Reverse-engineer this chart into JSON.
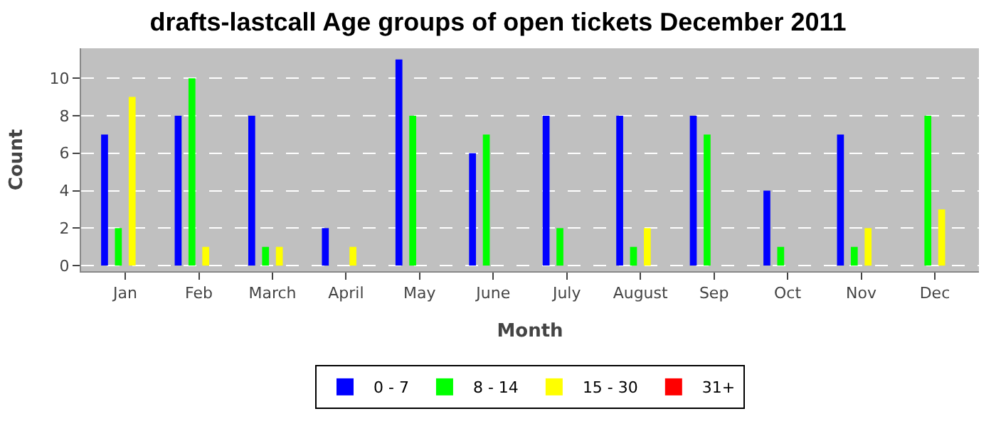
{
  "chart_data": {
    "type": "bar",
    "title": "drafts-lastcall Age groups of open tickets December 2011",
    "xlabel": "Month",
    "ylabel": "Count",
    "categories": [
      "Jan",
      "Feb",
      "March",
      "April",
      "May",
      "June",
      "July",
      "August",
      "Sep",
      "Oct",
      "Nov",
      "Dec"
    ],
    "series": [
      {
        "name": "0 - 7",
        "color": "#0000ff",
        "values": [
          7,
          8,
          8,
          2,
          11,
          6,
          8,
          8,
          8,
          4,
          7,
          0
        ]
      },
      {
        "name": "8 - 14",
        "color": "#00ff00",
        "values": [
          2,
          10,
          1,
          0,
          8,
          7,
          2,
          1,
          7,
          1,
          1,
          8
        ]
      },
      {
        "name": "15 - 30",
        "color": "#ffff00",
        "values": [
          9,
          1,
          1,
          1,
          0,
          0,
          0,
          2,
          0,
          0,
          2,
          3
        ]
      },
      {
        "name": "31+",
        "color": "#ff0000",
        "values": [
          0,
          0,
          0,
          0,
          0,
          0,
          0,
          0,
          0,
          0,
          0,
          0
        ]
      }
    ],
    "ylim": [
      -0.3,
      11.6
    ],
    "yticks": [
      0,
      2,
      4,
      6,
      8,
      10
    ],
    "grid": "y",
    "legend": "bottom"
  }
}
